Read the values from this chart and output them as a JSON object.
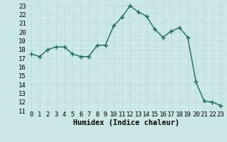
{
  "xlabel": "Humidex (Indice chaleur)",
  "x": [
    0,
    1,
    2,
    3,
    4,
    5,
    6,
    7,
    8,
    9,
    10,
    11,
    12,
    13,
    14,
    15,
    16,
    17,
    18,
    19,
    20,
    21,
    22,
    23
  ],
  "y": [
    17.5,
    17.2,
    18.0,
    18.3,
    18.3,
    17.5,
    17.2,
    17.2,
    18.5,
    18.5,
    20.7,
    21.7,
    23.0,
    22.3,
    21.8,
    20.3,
    19.4,
    20.1,
    20.5,
    19.4,
    14.3,
    12.1,
    12.0,
    11.6
  ],
  "line_color": "#1a6b5a",
  "marker": "+",
  "marker_size": 4,
  "bg_color": "#cce8e6",
  "grid_color": "#b8d8d5",
  "ylim": [
    11,
    23.5
  ],
  "yticks": [
    11,
    12,
    13,
    14,
    15,
    16,
    17,
    18,
    19,
    20,
    21,
    22,
    23
  ],
  "xlim": [
    -0.5,
    23.5
  ],
  "xticks": [
    0,
    1,
    2,
    3,
    4,
    5,
    6,
    7,
    8,
    9,
    10,
    11,
    12,
    13,
    14,
    15,
    16,
    17,
    18,
    19,
    20,
    21,
    22,
    23
  ],
  "xlabel_fontsize": 7.5,
  "tick_fontsize": 6.5,
  "line_width": 1.0
}
